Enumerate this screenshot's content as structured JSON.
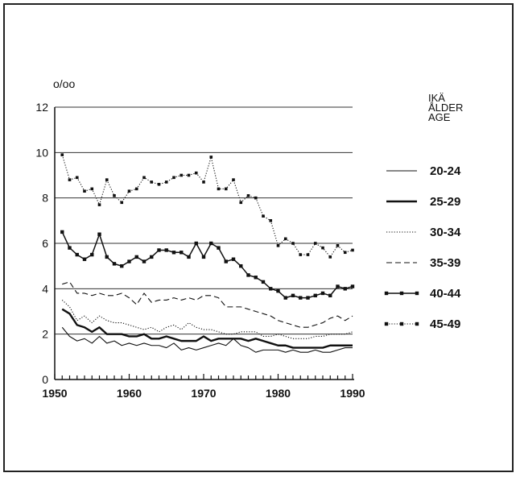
{
  "chart_data": {
    "type": "line",
    "title": "",
    "ylabel_unit": "o/oo",
    "xlabel": "",
    "xlim": [
      1950,
      1990
    ],
    "ylim": [
      0,
      12
    ],
    "x_ticks": [
      "1950",
      "1960",
      "1970",
      "1980",
      "1990"
    ],
    "y_ticks": [
      "0",
      "2",
      "4",
      "6",
      "8",
      "10",
      "12"
    ],
    "grid": "horizontal",
    "legend_title": [
      "IKÄ",
      "ÅLDER",
      "AGE"
    ],
    "legend_position": "right",
    "x": [
      1951,
      1952,
      1953,
      1954,
      1955,
      1956,
      1957,
      1958,
      1959,
      1960,
      1961,
      1962,
      1963,
      1964,
      1965,
      1966,
      1967,
      1968,
      1969,
      1970,
      1971,
      1972,
      1973,
      1974,
      1975,
      1976,
      1977,
      1978,
      1979,
      1980,
      1981,
      1982,
      1983,
      1984,
      1985,
      1986,
      1987,
      1988,
      1989,
      1990
    ],
    "series": [
      {
        "name": "20-24",
        "style": "thin",
        "values": [
          2.3,
          1.9,
          1.7,
          1.8,
          1.6,
          1.9,
          1.6,
          1.7,
          1.5,
          1.6,
          1.5,
          1.6,
          1.5,
          1.5,
          1.4,
          1.6,
          1.3,
          1.4,
          1.3,
          1.4,
          1.5,
          1.6,
          1.5,
          1.8,
          1.5,
          1.4,
          1.2,
          1.3,
          1.3,
          1.3,
          1.2,
          1.3,
          1.2,
          1.2,
          1.3,
          1.2,
          1.2,
          1.3,
          1.4,
          1.4
        ]
      },
      {
        "name": "25-29",
        "style": "thick",
        "values": [
          3.1,
          2.9,
          2.4,
          2.3,
          2.1,
          2.3,
          2.0,
          2.0,
          2.0,
          1.9,
          1.9,
          2.0,
          1.8,
          1.8,
          1.9,
          1.8,
          1.7,
          1.7,
          1.7,
          1.9,
          1.7,
          1.8,
          1.8,
          1.8,
          1.8,
          1.7,
          1.8,
          1.7,
          1.6,
          1.5,
          1.5,
          1.4,
          1.4,
          1.4,
          1.4,
          1.4,
          1.5,
          1.5,
          1.5,
          1.5
        ]
      },
      {
        "name": "30-34",
        "style": "dotted",
        "values": [
          3.5,
          3.2,
          2.6,
          2.8,
          2.5,
          2.8,
          2.6,
          2.5,
          2.5,
          2.4,
          2.3,
          2.2,
          2.3,
          2.1,
          2.3,
          2.4,
          2.2,
          2.5,
          2.3,
          2.2,
          2.2,
          2.1,
          2.0,
          2.0,
          2.1,
          2.1,
          2.1,
          1.9,
          1.9,
          2.0,
          1.9,
          1.8,
          1.8,
          1.8,
          1.9,
          1.9,
          2.0,
          2.0,
          2.0,
          2.1
        ]
      },
      {
        "name": "35-39",
        "style": "dashed",
        "values": [
          4.2,
          4.3,
          3.8,
          3.8,
          3.7,
          3.8,
          3.7,
          3.7,
          3.8,
          3.6,
          3.3,
          3.8,
          3.4,
          3.5,
          3.5,
          3.6,
          3.5,
          3.6,
          3.5,
          3.7,
          3.7,
          3.6,
          3.2,
          3.2,
          3.2,
          3.1,
          3.0,
          2.9,
          2.8,
          2.6,
          2.5,
          2.4,
          2.3,
          2.3,
          2.4,
          2.5,
          2.7,
          2.8,
          2.6,
          2.8
        ]
      },
      {
        "name": "40-44",
        "style": "square-markers",
        "values": [
          6.5,
          5.8,
          5.5,
          5.3,
          5.5,
          6.4,
          5.4,
          5.1,
          5.0,
          5.2,
          5.4,
          5.2,
          5.4,
          5.7,
          5.7,
          5.6,
          5.6,
          5.4,
          6.0,
          5.4,
          6.0,
          5.8,
          5.2,
          5.3,
          5.0,
          4.6,
          4.5,
          4.3,
          4.0,
          3.9,
          3.6,
          3.7,
          3.6,
          3.6,
          3.7,
          3.8,
          3.7,
          4.1,
          4.0,
          4.1
        ]
      },
      {
        "name": "45-49",
        "style": "dotted-markers",
        "values": [
          9.9,
          8.8,
          8.9,
          8.3,
          8.4,
          7.7,
          8.8,
          8.1,
          7.8,
          8.3,
          8.4,
          8.9,
          8.7,
          8.6,
          8.7,
          8.9,
          9.0,
          9.0,
          9.1,
          8.7,
          9.8,
          8.4,
          8.4,
          8.8,
          7.8,
          8.1,
          8.0,
          7.2,
          7.0,
          5.9,
          6.2,
          6.0,
          5.5,
          5.5,
          6.0,
          5.8,
          5.4,
          5.9,
          5.6,
          5.7
        ]
      }
    ]
  }
}
